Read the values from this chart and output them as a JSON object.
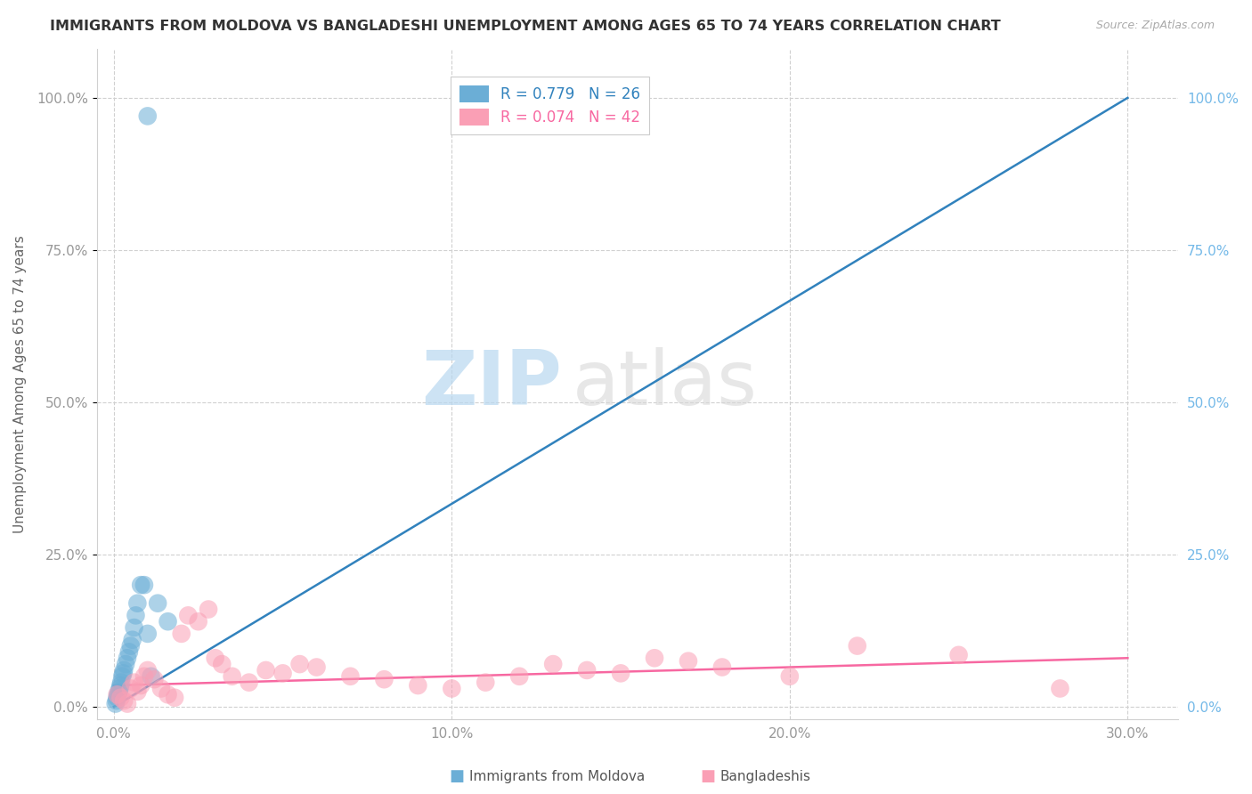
{
  "title": "IMMIGRANTS FROM MOLDOVA VS BANGLADESHI UNEMPLOYMENT AMONG AGES 65 TO 74 YEARS CORRELATION CHART",
  "source": "Source: ZipAtlas.com",
  "xlabel_ticks": [
    "0.0%",
    "10.0%",
    "20.0%",
    "30.0%"
  ],
  "xlabel_tick_vals": [
    0,
    10,
    20,
    30
  ],
  "ylabel_label": "Unemployment Among Ages 65 to 74 years",
  "ylabel_ticks": [
    "0.0%",
    "25.0%",
    "50.0%",
    "75.0%",
    "100.0%"
  ],
  "ylabel_tick_vals": [
    0,
    25,
    50,
    75,
    100
  ],
  "xlim": [
    -0.5,
    31.5
  ],
  "ylim": [
    -2,
    108
  ],
  "legend_label1": "Immigrants from Moldova",
  "legend_label2": "Bangladeshis",
  "r1": 0.779,
  "n1": 26,
  "r2": 0.074,
  "n2": 42,
  "color1": "#6baed6",
  "color2": "#fa9fb5",
  "line_color1": "#3182bd",
  "line_color2": "#f768a1",
  "watermark_zip": "ZIP",
  "watermark_atlas": "atlas",
  "moldova_x": [
    0.05,
    0.08,
    0.1,
    0.12,
    0.15,
    0.18,
    0.2,
    0.22,
    0.25,
    0.28,
    0.3,
    0.35,
    0.4,
    0.45,
    0.5,
    0.55,
    0.6,
    0.65,
    0.7,
    0.8,
    0.9,
    1.0,
    1.1,
    1.3,
    1.6,
    1.0
  ],
  "moldova_y": [
    0.5,
    1.0,
    1.5,
    2.0,
    2.5,
    3.0,
    3.5,
    4.0,
    5.0,
    5.5,
    6.0,
    7.0,
    8.0,
    9.0,
    10.0,
    11.0,
    13.0,
    15.0,
    17.0,
    20.0,
    20.0,
    12.0,
    5.0,
    17.0,
    14.0,
    97.0
  ],
  "bangladeshi_x": [
    0.1,
    0.2,
    0.3,
    0.4,
    0.5,
    0.6,
    0.7,
    0.8,
    0.9,
    1.0,
    1.2,
    1.4,
    1.6,
    1.8,
    2.0,
    2.2,
    2.5,
    2.8,
    3.0,
    3.2,
    3.5,
    4.0,
    4.5,
    5.0,
    5.5,
    6.0,
    7.0,
    8.0,
    9.0,
    10.0,
    11.0,
    12.0,
    13.0,
    14.0,
    15.0,
    16.0,
    17.0,
    18.0,
    20.0,
    22.0,
    25.0,
    28.0
  ],
  "bangladeshi_y": [
    2.0,
    1.5,
    1.0,
    0.5,
    3.0,
    4.0,
    2.5,
    3.5,
    5.0,
    6.0,
    4.5,
    3.0,
    2.0,
    1.5,
    12.0,
    15.0,
    14.0,
    16.0,
    8.0,
    7.0,
    5.0,
    4.0,
    6.0,
    5.5,
    7.0,
    6.5,
    5.0,
    4.5,
    3.5,
    3.0,
    4.0,
    5.0,
    7.0,
    6.0,
    5.5,
    8.0,
    7.5,
    6.5,
    5.0,
    10.0,
    8.5,
    3.0
  ],
  "moldova_line_x": [
    0,
    30
  ],
  "moldova_line_y": [
    0,
    100
  ],
  "bangladeshi_line_x": [
    0,
    30
  ],
  "bangladeshi_line_y": [
    3.5,
    8.0
  ]
}
